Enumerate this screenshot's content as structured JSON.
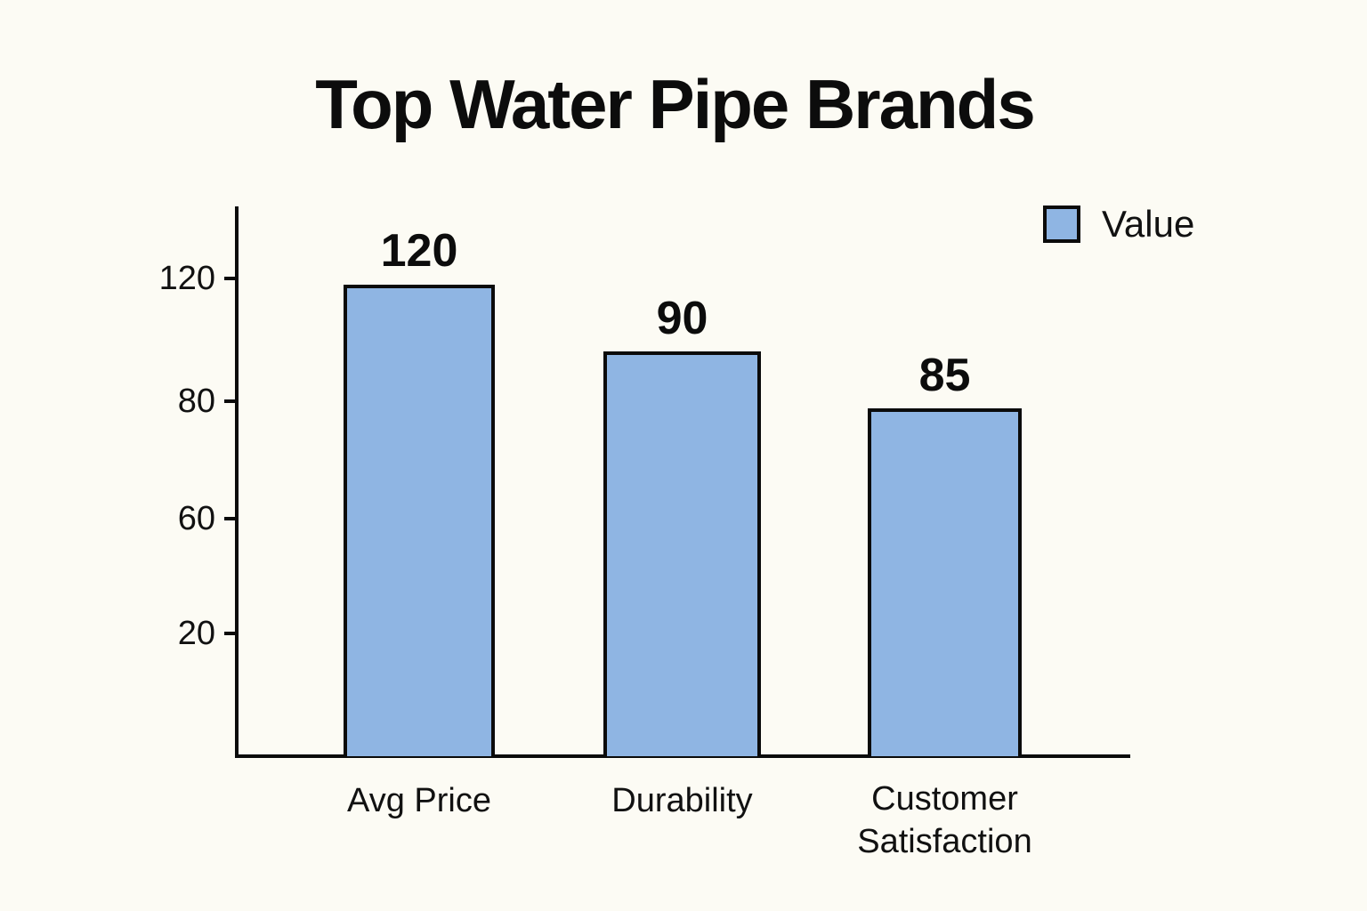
{
  "page": {
    "background_color": "#FCFBF4",
    "text_color": "#0B0B0B"
  },
  "chart_data": {
    "type": "bar",
    "title": "Top Water Pipe Brands",
    "categories": [
      "Avg Price",
      "Durability",
      "Customer Satisfaction"
    ],
    "series": [
      {
        "name": "Value",
        "values": [
          120,
          90,
          85
        ]
      }
    ],
    "value_labels": [
      "120",
      "90",
      "85"
    ],
    "xlabel": "",
    "ylabel": "",
    "y_ticks": [
      "120",
      "80",
      "60",
      "20"
    ],
    "ylim": [
      0,
      140
    ],
    "grid": false,
    "legend": {
      "position": "top-right",
      "entries": [
        {
          "label": "Value",
          "swatch_color": "#8FB5E3"
        }
      ]
    },
    "colors": {
      "bar_fill": "#8FB5E3",
      "bar_border": "#0B0B0B",
      "axis": "#0B0B0B",
      "background": "#FCFBF4"
    }
  }
}
